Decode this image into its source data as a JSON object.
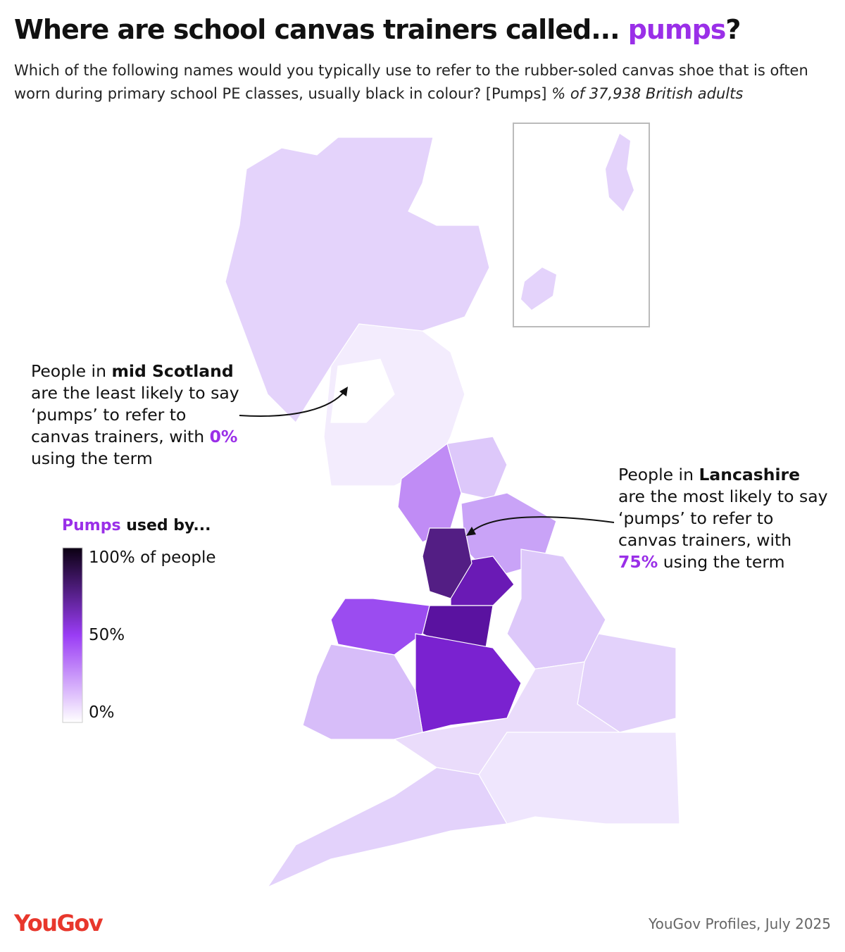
{
  "title": {
    "text": "Where are school canvas trainers called... ",
    "highlight": "pumps",
    "end": "?"
  },
  "subtitle": {
    "text": "Which of the following names would you typically use to refer to the rubber-soled canvas shoe that is often worn during primary school PE classes, usually black in colour? [Pumps] ",
    "italic": "% of 37,938 British adults"
  },
  "annotations": [
    {
      "before": "People in ",
      "region": "mid Scotland",
      "middle": " are the least likely to say ‘pumps’ to refer to canvas trainers, with ",
      "value": 0,
      "value_label": "0%",
      "after": " using the term"
    },
    {
      "before": "People in ",
      "region": "Lancashire",
      "middle": " are the most likely to say ‘pumps’ to refer to canvas trainers, with ",
      "value": 75,
      "value_label": "75%",
      "after": " using the term"
    }
  ],
  "legend": {
    "title_highlight": "Pumps",
    "title_rest": " used by...",
    "ticks": [
      {
        "value": 100,
        "label": "100% of people"
      },
      {
        "value": 50,
        "label": "50%"
      },
      {
        "value": 0,
        "label": "0%"
      }
    ],
    "colors": [
      "#0b0012",
      "#9a3cf5",
      "#ffffff"
    ]
  },
  "footer": {
    "logo": "YouGov",
    "source": "YouGov Profiles, July 2025"
  }
}
